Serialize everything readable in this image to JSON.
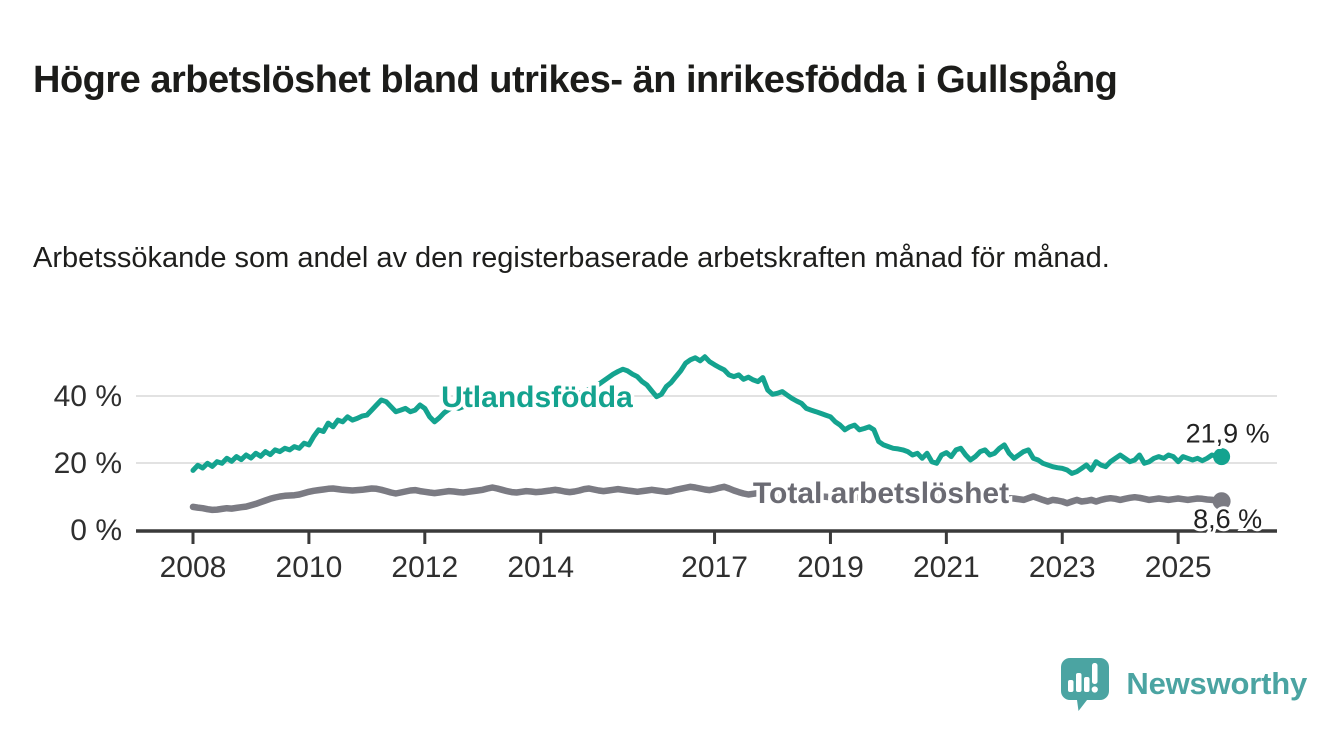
{
  "header": {
    "title": "Högre arbetslöshet bland utrikes- än inrikesfödda i Gullspång",
    "subtitle": "Arbetssökande som andel av den registerbaserade arbetskraften månad för månad."
  },
  "chart_data": {
    "type": "line",
    "unit": "%",
    "x_start": "2008-01",
    "x_end": "2025-10",
    "points_per_year": 12,
    "x_tick_labels": [
      "2008",
      "2010",
      "2012",
      "2014",
      "2017",
      "2019",
      "2021",
      "2023",
      "2025"
    ],
    "x_tick_years": [
      2008,
      2010,
      2012,
      2014,
      2017,
      2019,
      2021,
      2023,
      2025
    ],
    "y_ticks": [
      {
        "value": 0,
        "label": "0 %"
      },
      {
        "value": 20,
        "label": "20 %"
      },
      {
        "value": 40,
        "label": "40 %"
      }
    ],
    "ylim": [
      0,
      55
    ],
    "grid": "horizontal",
    "colors": {
      "utlandsfodda": "#14a38f",
      "total": "#7b7b83",
      "total_label": "#6b6b73",
      "axis": "#3a3a3a",
      "gridline": "#d8d8d8",
      "end_label_text": "#222222"
    },
    "series": [
      {
        "name": "Utlandsfödda",
        "color": "#14a38f",
        "end_label": "21,9 %",
        "end_value": 21.9,
        "values": [
          17.8,
          19.3,
          18.5,
          19.9,
          19.0,
          20.4,
          19.9,
          21.4,
          20.5,
          21.9,
          21.0,
          22.4,
          21.5,
          22.9,
          22.0,
          23.4,
          22.5,
          23.9,
          23.4,
          24.4,
          23.9,
          24.9,
          24.4,
          25.9,
          25.4,
          27.9,
          29.9,
          29.4,
          31.9,
          30.8,
          32.8,
          32.3,
          33.8,
          32.8,
          33.3,
          34.0,
          34.3,
          35.8,
          37.3,
          38.8,
          38.3,
          36.8,
          35.3,
          35.8,
          36.3,
          35.3,
          35.8,
          37.3,
          36.3,
          33.8,
          32.3,
          33.5,
          35.0,
          36.0,
          36.8,
          36.3,
          36.8,
          37.2,
          36.5,
          37.0,
          36.8,
          37.3,
          37.0,
          37.5,
          37.8,
          37.3,
          37.8,
          38.2,
          37.8,
          38.3,
          38.0,
          38.5,
          38.3,
          38.8,
          38.5,
          39.0,
          39.5,
          39.2,
          39.8,
          40.3,
          40.8,
          41.3,
          42.0,
          42.8,
          43.5,
          44.5,
          45.5,
          46.5,
          47.3,
          48.0,
          47.5,
          46.5,
          45.8,
          44.3,
          43.3,
          41.5,
          39.8,
          40.5,
          42.8,
          44.0,
          45.8,
          47.5,
          49.8,
          50.8,
          51.4,
          50.5,
          51.7,
          50.2,
          49.3,
          48.5,
          47.8,
          46.3,
          45.8,
          46.3,
          45.0,
          45.6,
          44.8,
          44.3,
          45.5,
          41.8,
          40.5,
          40.8,
          41.3,
          40.3,
          39.3,
          38.5,
          37.8,
          36.3,
          35.8,
          35.3,
          34.8,
          34.3,
          33.8,
          32.3,
          31.3,
          29.9,
          30.8,
          31.3,
          29.9,
          30.3,
          30.8,
          29.9,
          26.4,
          25.4,
          24.9,
          24.4,
          24.2,
          23.9,
          23.4,
          22.4,
          22.9,
          21.4,
          22.9,
          20.4,
          19.9,
          22.4,
          23.1,
          21.9,
          23.9,
          24.4,
          22.4,
          20.9,
          21.9,
          23.4,
          23.9,
          22.4,
          22.9,
          24.4,
          25.4,
          22.9,
          21.4,
          22.4,
          23.4,
          23.9,
          21.4,
          20.9,
          19.9,
          19.4,
          18.9,
          18.6,
          18.4,
          17.9,
          16.9,
          17.4,
          18.4,
          19.4,
          17.9,
          20.4,
          19.4,
          18.9,
          20.4,
          21.4,
          22.4,
          21.4,
          20.4,
          20.9,
          22.4,
          19.9,
          20.4,
          21.4,
          21.9,
          21.4,
          22.4,
          21.9,
          20.4,
          21.9,
          21.4,
          20.9,
          21.4,
          20.7,
          21.4,
          22.4,
          22.0,
          21.9
        ]
      },
      {
        "name": "Total arbetslöshet",
        "color": "#7b7b83",
        "end_label": "8,6 %",
        "end_value": 8.6,
        "values": [
          6.9,
          6.7,
          6.5,
          6.2,
          6.0,
          6.1,
          6.3,
          6.5,
          6.4,
          6.6,
          6.8,
          7.0,
          7.4,
          7.8,
          8.3,
          8.8,
          9.3,
          9.7,
          10.0,
          10.2,
          10.3,
          10.4,
          10.6,
          11.0,
          11.4,
          11.7,
          11.9,
          12.1,
          12.3,
          12.4,
          12.2,
          12.0,
          11.9,
          11.8,
          11.9,
          12.0,
          12.2,
          12.4,
          12.3,
          12.0,
          11.6,
          11.2,
          10.9,
          11.2,
          11.5,
          11.8,
          11.9,
          11.6,
          11.4,
          11.2,
          11.0,
          11.2,
          11.4,
          11.6,
          11.5,
          11.3,
          11.2,
          11.4,
          11.6,
          11.8,
          12.0,
          12.4,
          12.7,
          12.4,
          12.0,
          11.6,
          11.3,
          11.2,
          11.4,
          11.6,
          11.5,
          11.3,
          11.4,
          11.6,
          11.8,
          12.0,
          11.8,
          11.5,
          11.3,
          11.5,
          11.8,
          12.2,
          12.4,
          12.1,
          11.8,
          11.6,
          11.8,
          12.0,
          12.2,
          12.0,
          11.8,
          11.6,
          11.4,
          11.6,
          11.8,
          12.0,
          11.8,
          11.6,
          11.4,
          11.6,
          12.0,
          12.3,
          12.6,
          12.9,
          12.7,
          12.4,
          12.1,
          11.9,
          12.2,
          12.6,
          12.9,
          12.4,
          11.8,
          11.3,
          10.9,
          10.6,
          10.8,
          11.0,
          11.2,
          11.0,
          10.8,
          10.6,
          10.4,
          10.2,
          10.0,
          9.9,
          9.8,
          9.9,
          10.0,
          10.1,
          10.0,
          9.9,
          9.8,
          9.7,
          9.6,
          9.5,
          9.6,
          9.7,
          9.8,
          9.9,
          9.8,
          9.7,
          9.8,
          9.9,
          10.0,
          10.2,
          10.5,
          10.8,
          11.0,
          11.1,
          11.0,
          10.8,
          10.6,
          10.4,
          10.2,
          10.0,
          9.9,
          9.8,
          9.7,
          9.6,
          9.5,
          9.4,
          9.3,
          9.4,
          9.5,
          9.4,
          9.3,
          9.2,
          9.3,
          9.5,
          9.4,
          9.2,
          9.0,
          9.5,
          10.0,
          9.5,
          9.0,
          8.5,
          9.0,
          8.8,
          8.5,
          8.0,
          8.5,
          9.0,
          8.5,
          8.7,
          9.0,
          8.5,
          9.0,
          9.3,
          9.5,
          9.3,
          9.0,
          9.3,
          9.6,
          9.8,
          9.6,
          9.3,
          9.0,
          9.2,
          9.4,
          9.2,
          9.0,
          9.2,
          9.4,
          9.2,
          9.0,
          9.2,
          9.4,
          9.3,
          9.1,
          9.0,
          8.8,
          8.6
        ]
      }
    ]
  },
  "branding": {
    "name": "Newsworthy",
    "color": "#4ba4a2",
    "icon": "newsworthy-chart-bubble-icon"
  }
}
